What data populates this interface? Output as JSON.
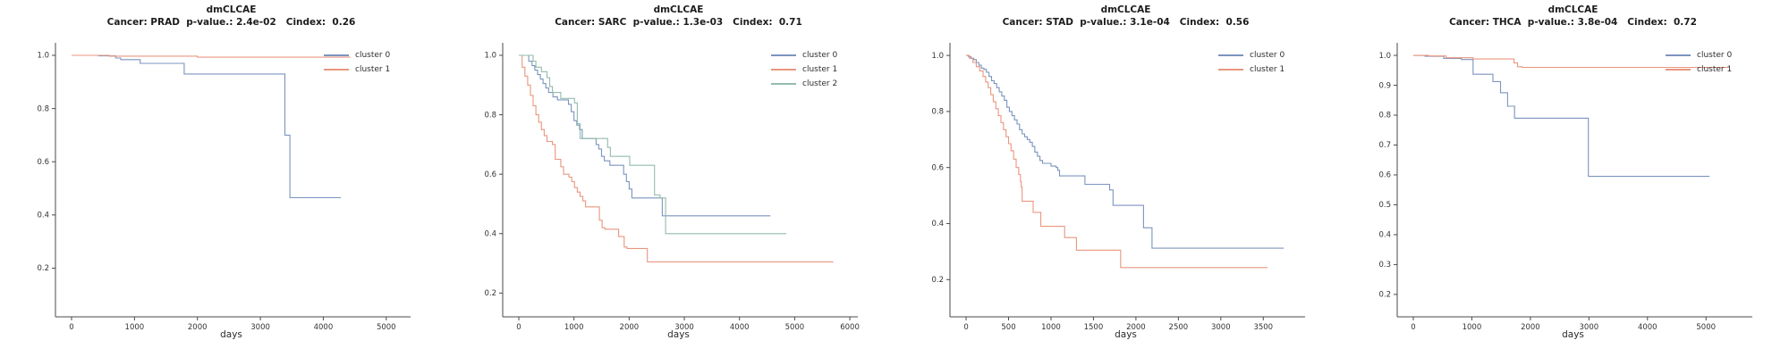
{
  "colors": {
    "cluster0_blue": "#7b94bf",
    "cluster1_orange": "#e9967f",
    "cluster2_green": "#93bcab",
    "axis": "#4a4a4a",
    "tick_label": "#333333",
    "title_text": "#1c1c1c"
  },
  "chart_data": [
    {
      "type": "line",
      "title": "dmCLCAE",
      "subtitle": "Cancer: PRAD  p-value.: 2.4e-02   Cindex:  0.26",
      "cancer": "PRAD",
      "p_value": "2.4e-02",
      "cindex": "0.26",
      "xlabel": "days",
      "legend_position": "upper right",
      "xlim": [
        -256,
        5330
      ],
      "ylim": [
        0.017,
        1.047
      ],
      "xticks": [
        0,
        1000,
        2000,
        3000,
        4000,
        5000
      ],
      "yticks": [
        "1.0",
        "0.8",
        "0.6",
        "0.4",
        "0.2"
      ],
      "series": [
        {
          "name": "cluster 0",
          "color": "#7b94bf",
          "points": [
            [
              0,
              1.0
            ],
            [
              430,
              0.998
            ],
            [
              700,
              0.99
            ],
            [
              780,
              0.984
            ],
            [
              1090,
              0.97
            ],
            [
              1790,
              0.93
            ],
            [
              3390,
              0.7
            ],
            [
              3470,
              0.465
            ],
            [
              4280,
              0.465
            ]
          ]
        },
        {
          "name": "cluster 1",
          "color": "#e9967f",
          "points": [
            [
              0,
              1.0
            ],
            [
              600,
              0.997
            ],
            [
              2000,
              0.993
            ],
            [
              4430,
              0.993
            ]
          ]
        }
      ]
    },
    {
      "type": "line",
      "title": "dmCLCAE",
      "subtitle": "Cancer: SARC  p-value.: 1.3e-03   Cindex:  0.71",
      "cancer": "SARC",
      "p_value": "1.3e-03",
      "cindex": "0.71",
      "xlabel": "days",
      "legend_position": "upper right",
      "xlim": [
        -292,
        6080
      ],
      "ylim": [
        0.12,
        1.042
      ],
      "xticks": [
        0,
        1000,
        2000,
        3000,
        4000,
        5000,
        6000
      ],
      "yticks": [
        "1.0",
        "0.8",
        "0.6",
        "0.4",
        "0.2"
      ],
      "series": [
        {
          "name": "cluster 0",
          "color": "#7b94bf",
          "points": [
            [
              0,
              1.0
            ],
            [
              180,
              0.98
            ],
            [
              240,
              0.965
            ],
            [
              290,
              0.95
            ],
            [
              340,
              0.935
            ],
            [
              390,
              0.92
            ],
            [
              440,
              0.905
            ],
            [
              490,
              0.89
            ],
            [
              540,
              0.875
            ],
            [
              620,
              0.86
            ],
            [
              700,
              0.85
            ],
            [
              900,
              0.835
            ],
            [
              950,
              0.81
            ],
            [
              1000,
              0.78
            ],
            [
              1050,
              0.765
            ],
            [
              1100,
              0.75
            ],
            [
              1150,
              0.72
            ],
            [
              1400,
              0.7
            ],
            [
              1450,
              0.685
            ],
            [
              1500,
              0.66
            ],
            [
              1550,
              0.645
            ],
            [
              1650,
              0.63
            ],
            [
              1900,
              0.6
            ],
            [
              1950,
              0.575
            ],
            [
              2000,
              0.55
            ],
            [
              2050,
              0.52
            ],
            [
              2600,
              0.46
            ],
            [
              4560,
              0.46
            ]
          ]
        },
        {
          "name": "cluster 1",
          "color": "#e9967f",
          "points": [
            [
              0,
              1.0
            ],
            [
              60,
              0.96
            ],
            [
              110,
              0.93
            ],
            [
              160,
              0.9
            ],
            [
              210,
              0.865
            ],
            [
              260,
              0.83
            ],
            [
              310,
              0.8
            ],
            [
              360,
              0.775
            ],
            [
              410,
              0.75
            ],
            [
              460,
              0.73
            ],
            [
              510,
              0.71
            ],
            [
              610,
              0.7
            ],
            [
              660,
              0.65
            ],
            [
              760,
              0.625
            ],
            [
              810,
              0.6
            ],
            [
              910,
              0.59
            ],
            [
              960,
              0.575
            ],
            [
              1010,
              0.555
            ],
            [
              1060,
              0.54
            ],
            [
              1110,
              0.525
            ],
            [
              1160,
              0.51
            ],
            [
              1210,
              0.49
            ],
            [
              1460,
              0.445
            ],
            [
              1510,
              0.42
            ],
            [
              1560,
              0.415
            ],
            [
              1810,
              0.39
            ],
            [
              1910,
              0.355
            ],
            [
              1960,
              0.35
            ],
            [
              2330,
              0.305
            ],
            [
              5700,
              0.305
            ]
          ]
        },
        {
          "name": "cluster 2",
          "color": "#93bcab",
          "points": [
            [
              0,
              1.0
            ],
            [
              260,
              0.98
            ],
            [
              310,
              0.96
            ],
            [
              410,
              0.945
            ],
            [
              510,
              0.925
            ],
            [
              560,
              0.895
            ],
            [
              610,
              0.875
            ],
            [
              760,
              0.855
            ],
            [
              1010,
              0.84
            ],
            [
              1060,
              0.77
            ],
            [
              1110,
              0.72
            ],
            [
              1610,
              0.69
            ],
            [
              1660,
              0.66
            ],
            [
              2010,
              0.63
            ],
            [
              2460,
              0.53
            ],
            [
              2560,
              0.52
            ],
            [
              2660,
              0.4
            ],
            [
              4850,
              0.4
            ]
          ]
        }
      ]
    },
    {
      "type": "line",
      "title": "dmCLCAE",
      "subtitle": "Cancer: STAD  p-value.: 3.1e-04   Cindex:  0.56",
      "cancer": "STAD",
      "p_value": "3.1e-04",
      "cindex": "0.56",
      "xlabel": "days",
      "legend_position": "upper right",
      "xlim": [
        -190,
        3950
      ],
      "ylim": [
        0.067,
        1.045
      ],
      "xticks": [
        0,
        500,
        1000,
        1500,
        2000,
        2500,
        3000,
        3500
      ],
      "yticks": [
        "1.0",
        "0.8",
        "0.6",
        "0.4",
        "0.2"
      ],
      "series": [
        {
          "name": "cluster 0",
          "color": "#7b94bf",
          "points": [
            [
              0,
              1.0
            ],
            [
              30,
              0.995
            ],
            [
              60,
              0.99
            ],
            [
              90,
              0.985
            ],
            [
              120,
              0.975
            ],
            [
              150,
              0.965
            ],
            [
              180,
              0.955
            ],
            [
              210,
              0.95
            ],
            [
              240,
              0.94
            ],
            [
              270,
              0.925
            ],
            [
              300,
              0.91
            ],
            [
              330,
              0.9
            ],
            [
              360,
              0.885
            ],
            [
              390,
              0.87
            ],
            [
              420,
              0.855
            ],
            [
              450,
              0.84
            ],
            [
              480,
              0.815
            ],
            [
              510,
              0.8
            ],
            [
              540,
              0.785
            ],
            [
              570,
              0.77
            ],
            [
              600,
              0.755
            ],
            [
              630,
              0.735
            ],
            [
              660,
              0.72
            ],
            [
              690,
              0.71
            ],
            [
              720,
              0.7
            ],
            [
              750,
              0.69
            ],
            [
              780,
              0.675
            ],
            [
              810,
              0.655
            ],
            [
              840,
              0.64
            ],
            [
              870,
              0.625
            ],
            [
              900,
              0.615
            ],
            [
              1000,
              0.605
            ],
            [
              1060,
              0.6
            ],
            [
              1080,
              0.59
            ],
            [
              1100,
              0.57
            ],
            [
              1400,
              0.54
            ],
            [
              1690,
              0.52
            ],
            [
              1730,
              0.465
            ],
            [
              2090,
              0.385
            ],
            [
              2190,
              0.312
            ],
            [
              3740,
              0.312
            ]
          ]
        },
        {
          "name": "cluster 1",
          "color": "#e9967f",
          "points": [
            [
              0,
              1.0
            ],
            [
              40,
              0.99
            ],
            [
              80,
              0.975
            ],
            [
              120,
              0.96
            ],
            [
              160,
              0.945
            ],
            [
              200,
              0.925
            ],
            [
              230,
              0.905
            ],
            [
              260,
              0.885
            ],
            [
              290,
              0.86
            ],
            [
              320,
              0.835
            ],
            [
              350,
              0.81
            ],
            [
              380,
              0.785
            ],
            [
              410,
              0.76
            ],
            [
              440,
              0.735
            ],
            [
              470,
              0.71
            ],
            [
              500,
              0.685
            ],
            [
              530,
              0.66
            ],
            [
              560,
              0.63
            ],
            [
              590,
              0.6
            ],
            [
              620,
              0.575
            ],
            [
              640,
              0.55
            ],
            [
              650,
              0.53
            ],
            [
              660,
              0.48
            ],
            [
              790,
              0.44
            ],
            [
              880,
              0.39
            ],
            [
              1160,
              0.35
            ],
            [
              1300,
              0.305
            ],
            [
              1820,
              0.243
            ],
            [
              3550,
              0.243
            ]
          ]
        }
      ]
    },
    {
      "type": "line",
      "title": "dmCLCAE",
      "subtitle": "Cancer: THCA  p-value.: 3.8e-04   Cindex:  0.72",
      "cancer": "THCA",
      "p_value": "3.8e-04",
      "cindex": "0.72",
      "xlabel": "days",
      "legend_position": "upper right",
      "xlim": [
        -275,
        5730
      ],
      "ylim": [
        0.125,
        1.042
      ],
      "xticks": [
        0,
        1000,
        2000,
        3000,
        4000,
        5000
      ],
      "yticks": [
        "1.0",
        "0.9",
        "0.8",
        "0.7",
        "0.6",
        "0.5",
        "0.4",
        "0.3",
        "0.2"
      ],
      "series": [
        {
          "name": "cluster 0",
          "color": "#7b94bf",
          "points": [
            [
              0,
              1.0
            ],
            [
              200,
              0.997
            ],
            [
              520,
              0.99
            ],
            [
              820,
              0.986
            ],
            [
              1020,
              0.937
            ],
            [
              1360,
              0.912
            ],
            [
              1490,
              0.875
            ],
            [
              1610,
              0.83
            ],
            [
              1730,
              0.79
            ],
            [
              2990,
              0.595
            ],
            [
              5060,
              0.595
            ]
          ]
        },
        {
          "name": "cluster 1",
          "color": "#e9967f",
          "points": [
            [
              0,
              1.0
            ],
            [
              260,
              0.998
            ],
            [
              560,
              0.992
            ],
            [
              1020,
              0.988
            ],
            [
              1720,
              0.975
            ],
            [
              1780,
              0.962
            ],
            [
              1860,
              0.96
            ],
            [
              5400,
              0.96
            ]
          ]
        }
      ]
    }
  ]
}
